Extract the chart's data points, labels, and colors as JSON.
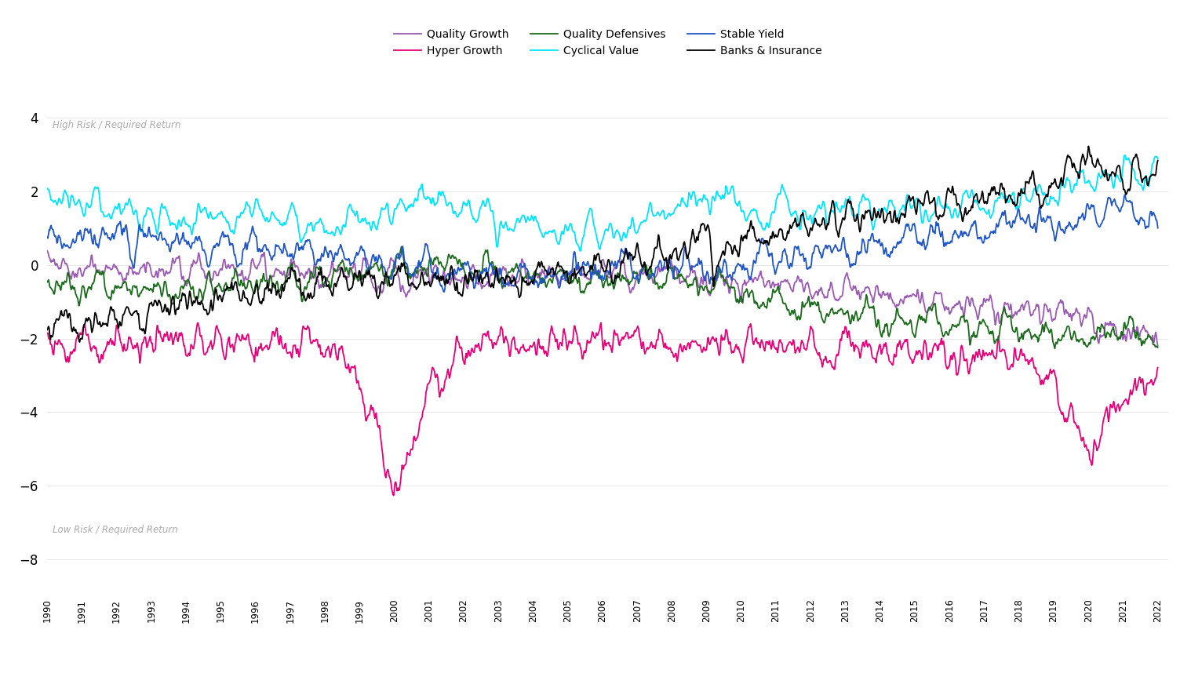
{
  "series": [
    {
      "name": "Quality Growth",
      "color": "#9B59B6"
    },
    {
      "name": "Hyper Growth",
      "color": "#E8007A"
    },
    {
      "name": "Quality Defensives",
      "color": "#1A6B1A"
    },
    {
      "name": "Cyclical Value",
      "color": "#00E5FF"
    },
    {
      "name": "Stable Yield",
      "color": "#1E56C8"
    },
    {
      "name": "Banks & Insurance",
      "color": "#000000"
    }
  ],
  "ylim": [
    -9,
    5
  ],
  "yticks": [
    -8,
    -6,
    -4,
    -2,
    0,
    2,
    4
  ],
  "start_year": 1990,
  "end_year": 2022,
  "high_risk_label": "High Risk / Required Return",
  "low_risk_label": "Low Risk / Required Return",
  "background_color": "#FFFFFF",
  "grid_color": "#CCCCCC"
}
